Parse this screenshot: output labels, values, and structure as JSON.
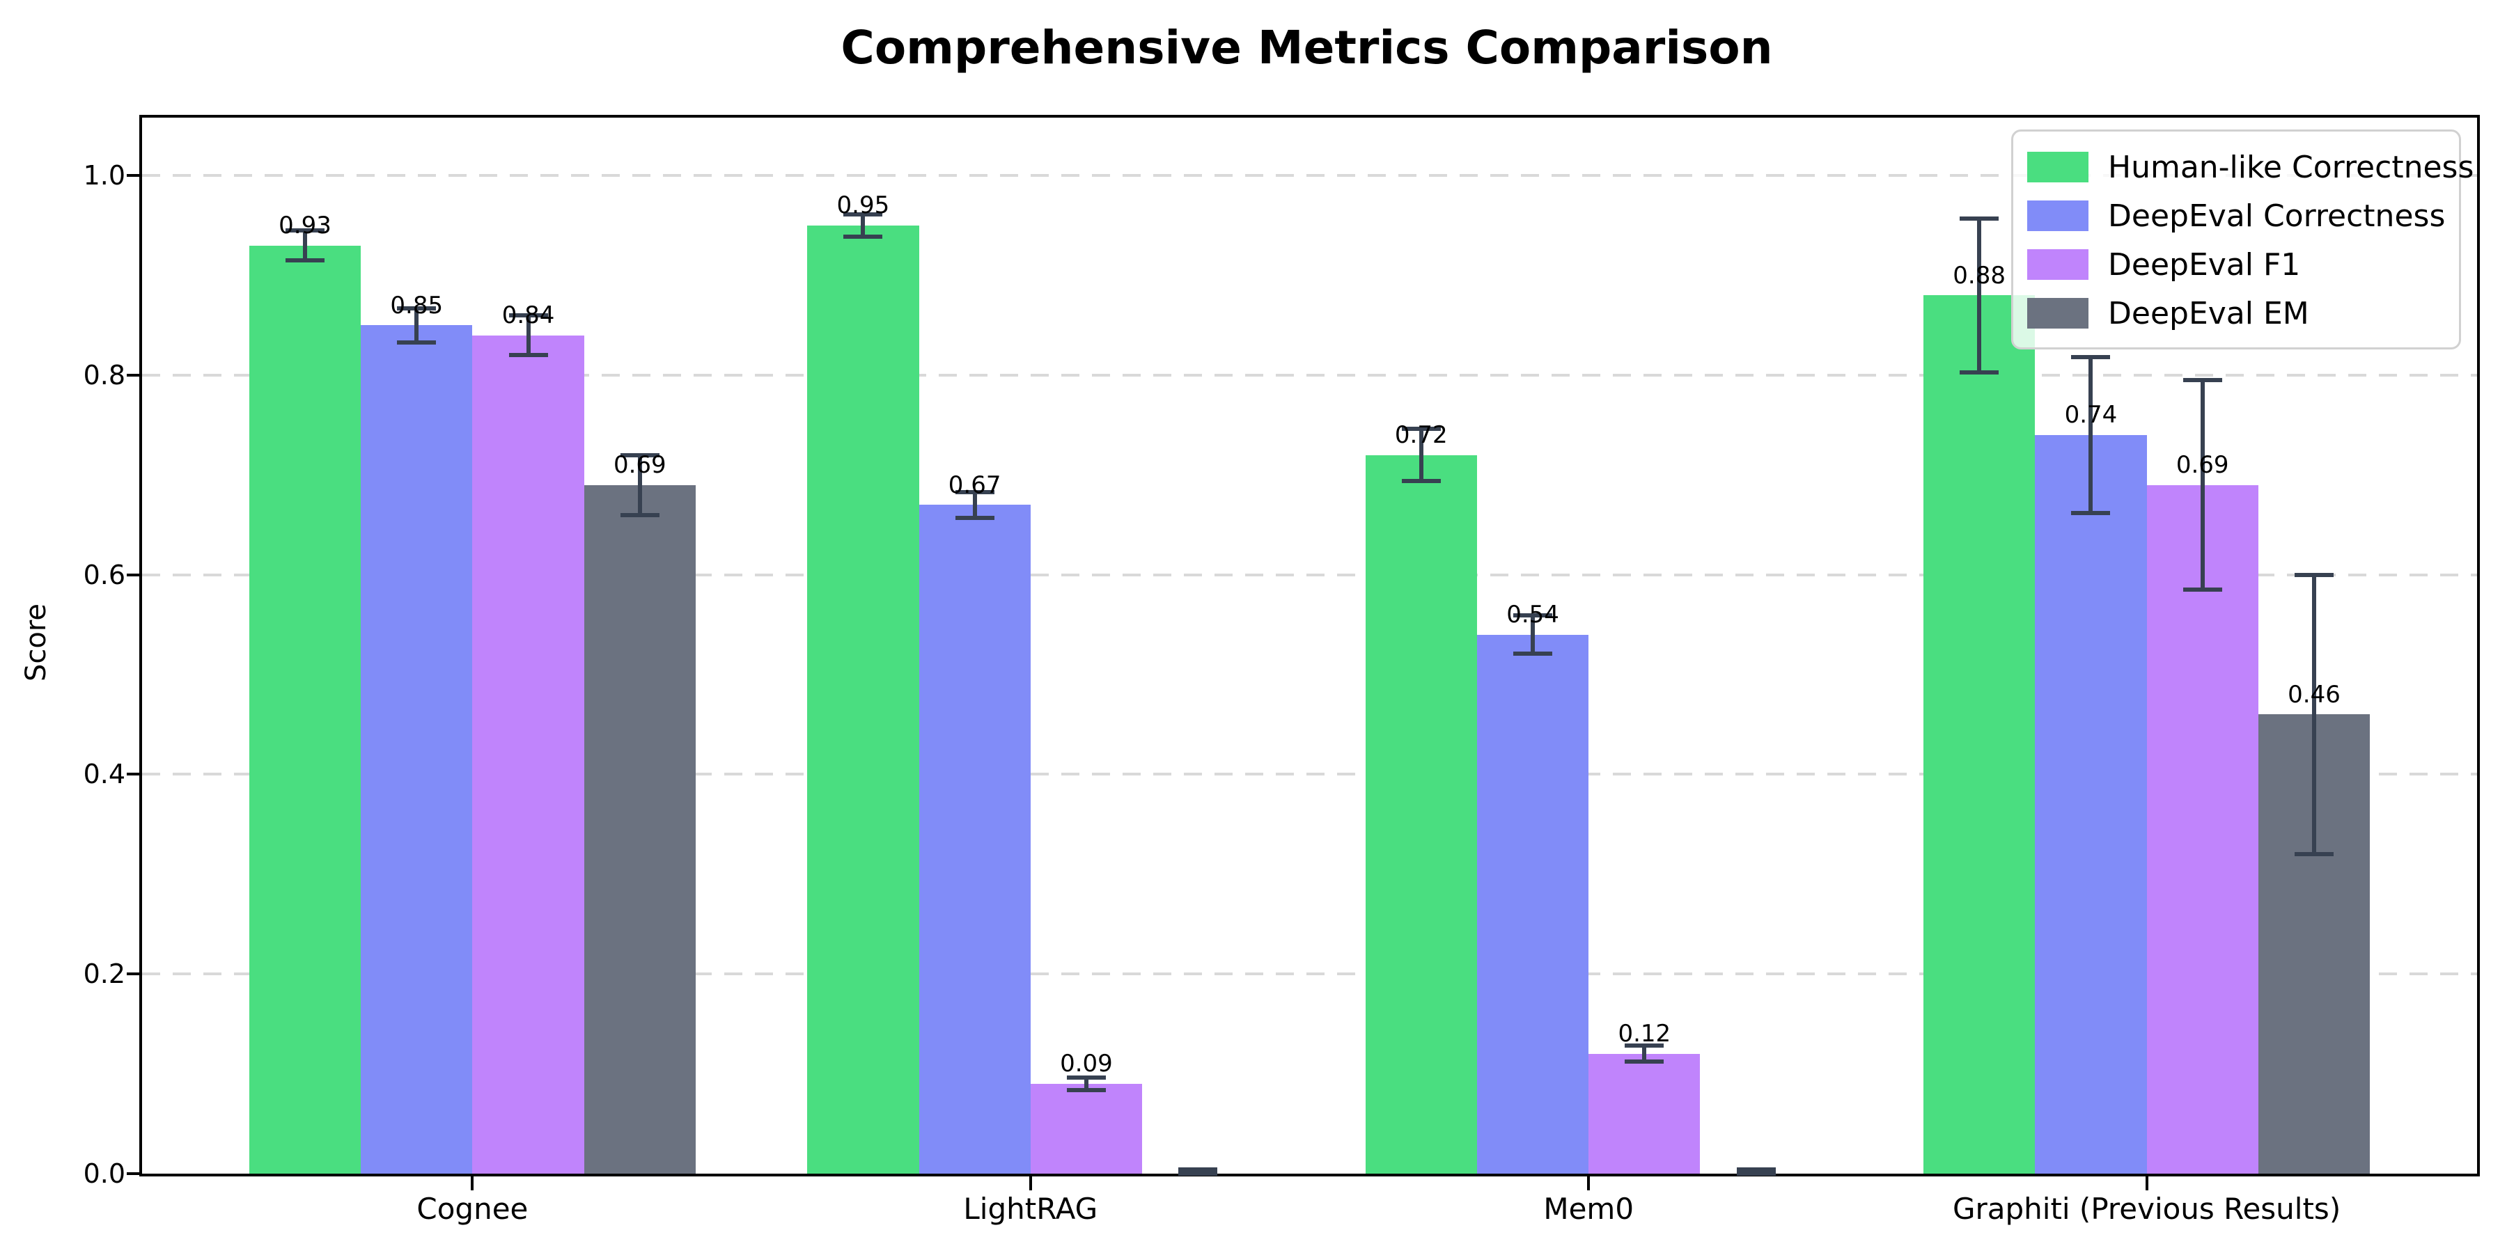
{
  "figure": {
    "title": "Comprehensive Metrics Comparison",
    "ylabel": "Score"
  },
  "chart_data": {
    "type": "bar",
    "title": "Comprehensive Metrics Comparison",
    "xlabel": "",
    "ylabel": "Score",
    "categories": [
      "Cognee",
      "LightRAG",
      "Mem0",
      "Graphiti (Previous Results)"
    ],
    "series": [
      {
        "name": "Human-like Correctness",
        "color": "#4ade80",
        "values": [
          0.93,
          0.95,
          0.72,
          0.88
        ],
        "errors": [
          0.015,
          0.011,
          0.026,
          0.077
        ],
        "bar_labels": [
          "0.93",
          "0.95",
          "0.72",
          "0.88"
        ]
      },
      {
        "name": "DeepEval Correctness",
        "color": "#818cf8",
        "values": [
          0.85,
          0.67,
          0.54,
          0.74
        ],
        "errors": [
          0.017,
          0.013,
          0.019,
          0.078
        ],
        "bar_labels": [
          "0.85",
          "0.67",
          "0.54",
          "0.74"
        ]
      },
      {
        "name": "DeepEval F1",
        "color": "#c084fc",
        "values": [
          0.84,
          0.09,
          0.12,
          0.69
        ],
        "errors": [
          0.02,
          0.006,
          0.008,
          0.105
        ],
        "bar_labels": [
          "0.84",
          "0.09",
          "0.12",
          "0.69"
        ]
      },
      {
        "name": "DeepEval EM",
        "color": "#6b7280",
        "values": [
          0.69,
          0.0,
          0.0,
          0.46
        ],
        "errors": [
          0.03,
          0.004,
          0.004,
          0.14
        ],
        "bar_labels": [
          "0.69",
          null,
          null,
          "0.46"
        ]
      }
    ],
    "ylim": [
      0,
      1.058
    ],
    "yticks": [
      "0.0",
      "0.2",
      "0.4",
      "0.6",
      "0.8",
      "1.0"
    ],
    "grid": "horizontal-dashed",
    "legend_position": "upper-right",
    "colors": {
      "errorbar": "#374151",
      "gridline": "#d9d9d9",
      "spine": "#000000",
      "background": "#ffffff"
    }
  }
}
